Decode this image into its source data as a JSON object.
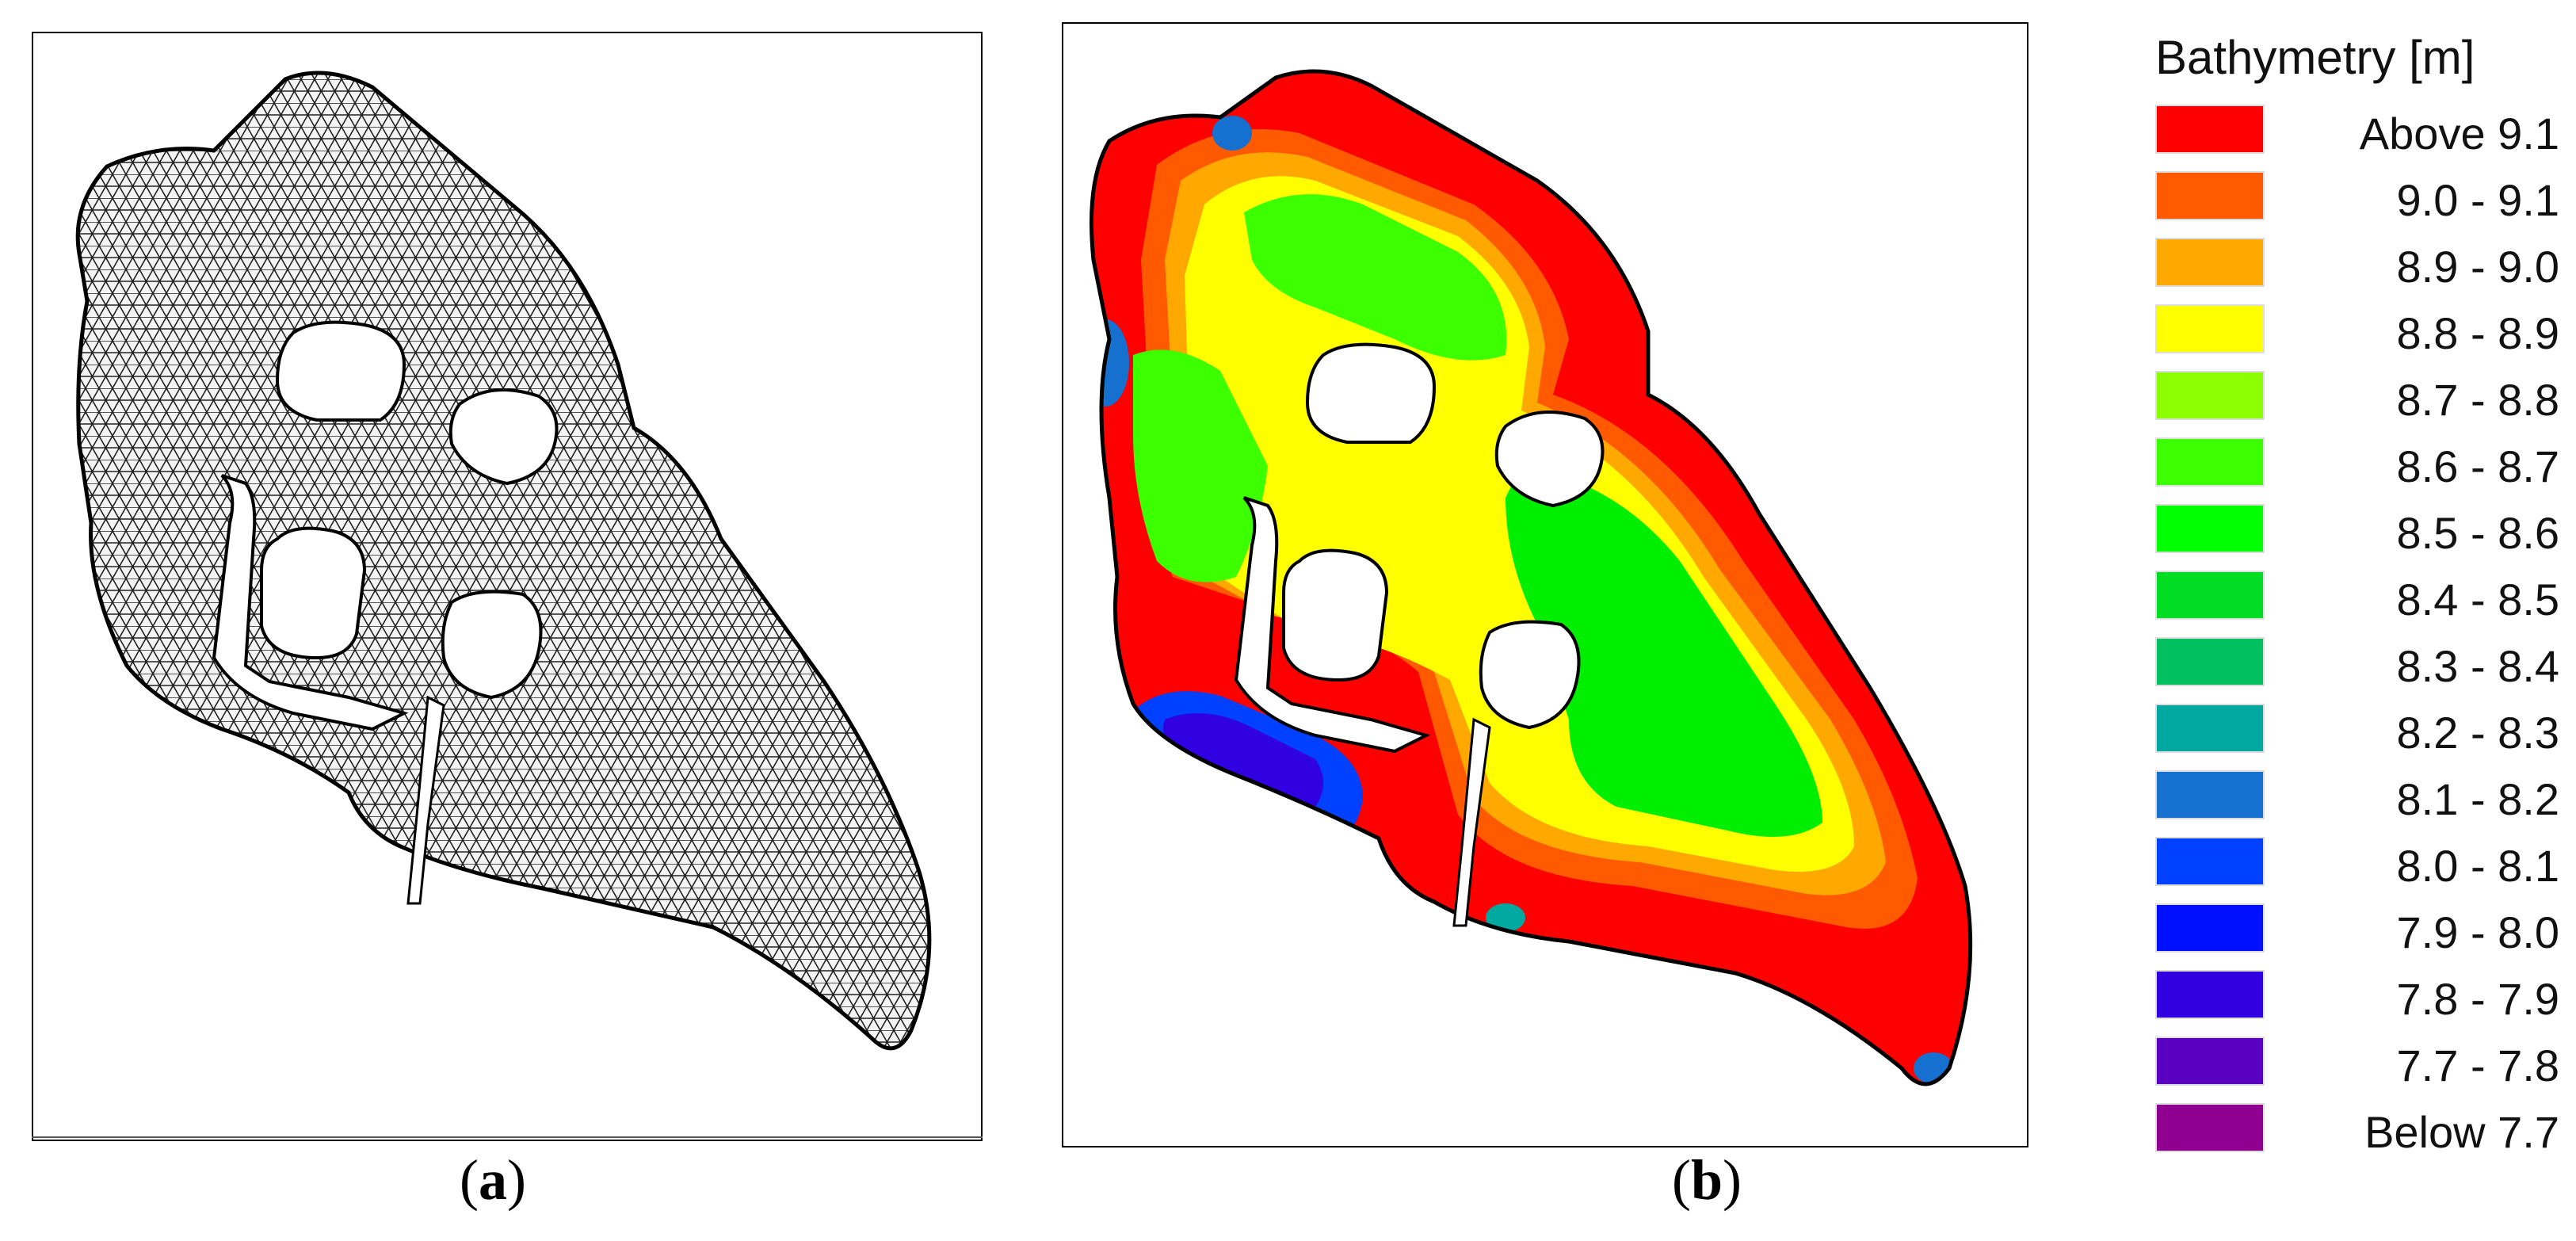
{
  "panels": {
    "a": {
      "caption_open": "(",
      "caption_letter": "a",
      "caption_close": ")"
    },
    "b": {
      "caption_open": "(",
      "caption_letter": "b",
      "caption_close": ")"
    }
  },
  "legend": {
    "title": "Bathymetry [m]",
    "items": [
      {
        "label": "Above 9.1",
        "color": "#ff0000"
      },
      {
        "label": "9.0 - 9.1",
        "color": "#ff5a00"
      },
      {
        "label": "8.9 - 9.0",
        "color": "#ffa800"
      },
      {
        "label": "8.8 - 8.9",
        "color": "#ffff00"
      },
      {
        "label": "8.7 - 8.8",
        "color": "#8cff00"
      },
      {
        "label": "8.6 - 8.7",
        "color": "#3cff00"
      },
      {
        "label": "8.5 - 8.6",
        "color": "#00ff00"
      },
      {
        "label": "8.4 - 8.5",
        "color": "#00dd22"
      },
      {
        "label": "8.3 - 8.4",
        "color": "#00c060"
      },
      {
        "label": "8.2 - 8.3",
        "color": "#00a8a0"
      },
      {
        "label": "8.1 - 8.2",
        "color": "#1570d0"
      },
      {
        "label": "8.0 - 8.1",
        "color": "#0040ff"
      },
      {
        "label": "7.9 - 8.0",
        "color": "#0010ff"
      },
      {
        "label": "7.8 - 7.9",
        "color": "#3000e0"
      },
      {
        "label": "7.7 - 7.8",
        "color": "#5a00c0"
      },
      {
        "label": "Below 7.7",
        "color": "#900090"
      }
    ]
  }
}
